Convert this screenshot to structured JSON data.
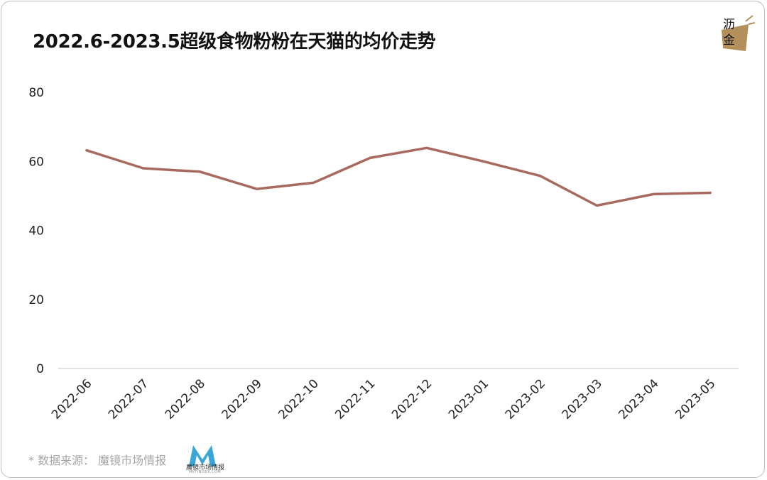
{
  "title": "2022.6-2023.5超级食物粉粉在天猫的均价走势",
  "brand_logo": {
    "line1": "沥",
    "line2": "金",
    "color": "#b38f5a"
  },
  "source": {
    "label": "* 数据来源：  魔镜市场情报",
    "logo_text": "魔镜市场情报",
    "logo_url_text": "MKTINDEX.COM",
    "logo_color": "#3aa6d8"
  },
  "chart_data": {
    "type": "line",
    "title": "2022.6-2023.5超级食物粉粉在天猫的均价走势",
    "xlabel": "",
    "ylabel": "",
    "categories": [
      "2022-06",
      "2022-07",
      "2022-08",
      "2022-09",
      "2022-10",
      "2022-11",
      "2022-12",
      "2023-01",
      "2023-02",
      "2023-03",
      "2023-04",
      "2023-05"
    ],
    "series": [
      {
        "values": [
          63.2,
          58.0,
          57.0,
          52.0,
          53.8,
          61.0,
          63.9,
          60.0,
          55.8,
          47.2,
          50.5,
          50.9
        ],
        "color": "#a86a5e"
      }
    ],
    "ylim": [
      0,
      80
    ],
    "yticks": [
      0,
      20,
      40,
      60,
      80
    ],
    "grid": false,
    "legend": "none"
  }
}
